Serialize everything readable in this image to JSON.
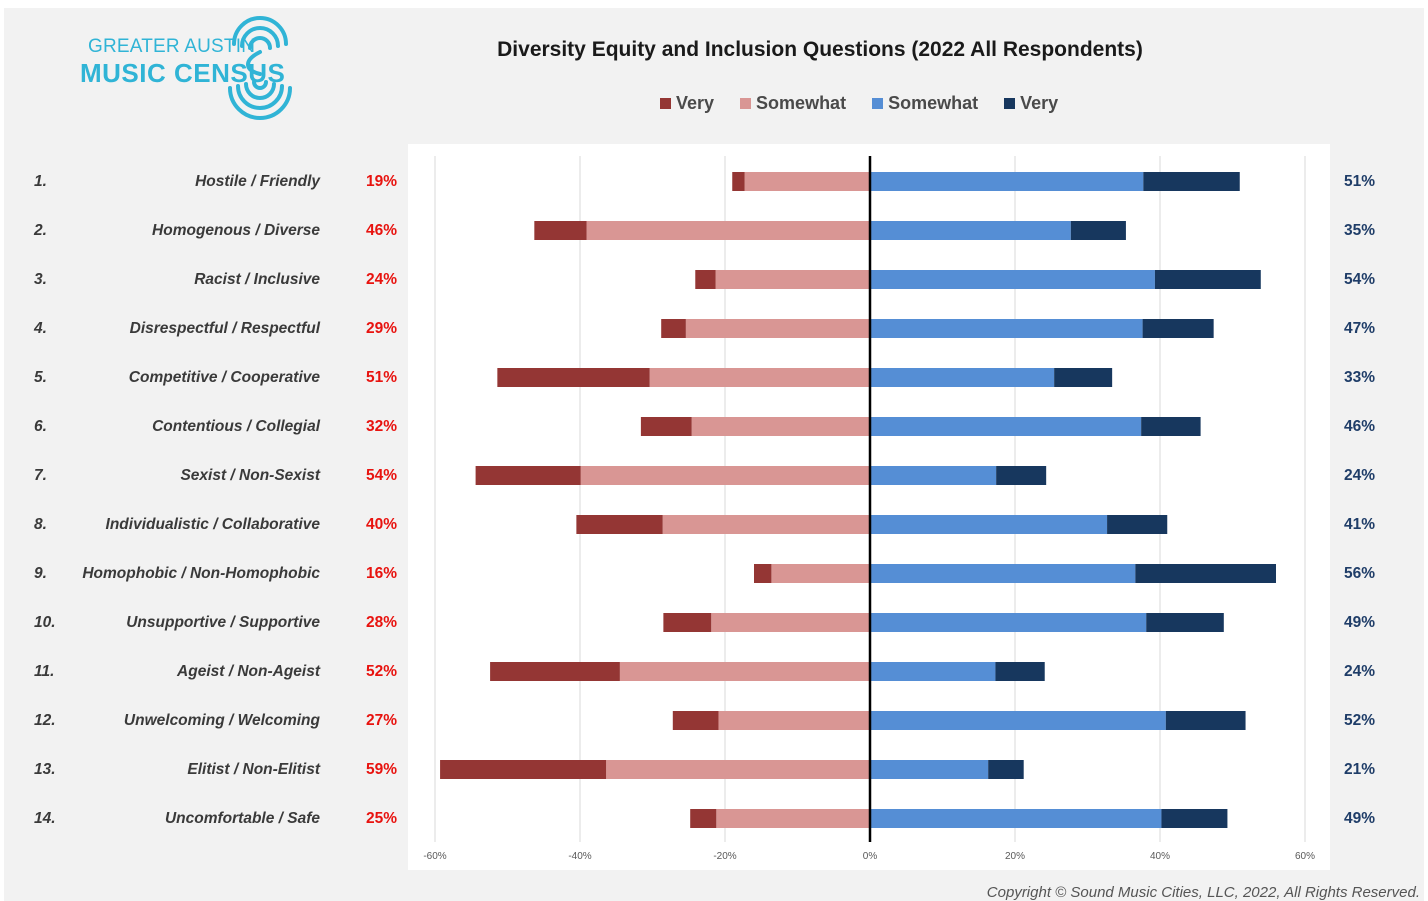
{
  "logo": {
    "line1": "GREATER AUSTIN",
    "line2": "MUSIC CENSUS",
    "icon": "radio-waves-icon"
  },
  "colors": {
    "very_negative": "#943634",
    "somewhat_negative": "#d99694",
    "somewhat_positive": "#558ed5",
    "very_positive": "#17375e",
    "negative_pct_text": "#e8130f",
    "positive_pct_text": "#1f3d68"
  },
  "chart_data": {
    "type": "bar",
    "orientation": "horizontal",
    "stacked": "diverging",
    "title": "Diversity Equity and Inclusion Questions (2022 All Respondents)",
    "legend": {
      "placement": "top",
      "entries": [
        {
          "label": "Very",
          "color": "#943634"
        },
        {
          "label": "Somewhat",
          "color": "#d99694"
        },
        {
          "label": "Somewhat",
          "color": "#558ed5"
        },
        {
          "label": "Very",
          "color": "#17375e"
        }
      ]
    },
    "xlim": [
      -60,
      60
    ],
    "xticks": [
      "-60%",
      "-40%",
      "-20%",
      "0%",
      "20%",
      "40%",
      "60%"
    ],
    "grid": "vertical",
    "rows": [
      {
        "num": "1.",
        "label": "Hostile / Friendly",
        "neg_total": "19%",
        "pos_total": "51%",
        "very_neg": 1.7,
        "somewhat_neg": 17.3,
        "somewhat_pos": 37.7,
        "very_pos": 13.3
      },
      {
        "num": "2.",
        "label": "Homogenous / Diverse",
        "neg_total": "46%",
        "pos_total": "35%",
        "very_neg": 7.2,
        "somewhat_neg": 39.1,
        "somewhat_pos": 27.7,
        "very_pos": 7.6
      },
      {
        "num": "3.",
        "label": "Racist / Inclusive",
        "neg_total": "24%",
        "pos_total": "54%",
        "very_neg": 2.8,
        "somewhat_neg": 21.3,
        "somewhat_pos": 39.3,
        "very_pos": 14.6
      },
      {
        "num": "4.",
        "label": "Disrespectful / Respectful",
        "neg_total": "29%",
        "pos_total": "47%",
        "very_neg": 3.4,
        "somewhat_neg": 25.4,
        "somewhat_pos": 37.6,
        "very_pos": 9.8
      },
      {
        "num": "5.",
        "label": "Competitive / Cooperative",
        "neg_total": "51%",
        "pos_total": "33%",
        "very_neg": 21.0,
        "somewhat_neg": 30.4,
        "somewhat_pos": 25.4,
        "very_pos": 8.0
      },
      {
        "num": "6.",
        "label": "Contentious / Collegial",
        "neg_total": "32%",
        "pos_total": "46%",
        "very_neg": 7.0,
        "somewhat_neg": 24.6,
        "somewhat_pos": 37.4,
        "very_pos": 8.2
      },
      {
        "num": "7.",
        "label": "Sexist / Non-Sexist",
        "neg_total": "54%",
        "pos_total": "24%",
        "very_neg": 14.5,
        "somewhat_neg": 39.9,
        "somewhat_pos": 17.4,
        "very_pos": 6.9
      },
      {
        "num": "8.",
        "label": "Individualistic / Collaborative",
        "neg_total": "40%",
        "pos_total": "41%",
        "very_neg": 11.9,
        "somewhat_neg": 28.6,
        "somewhat_pos": 32.7,
        "very_pos": 8.3
      },
      {
        "num": "9.",
        "label": "Homophobic / Non-Homophobic",
        "neg_total": "16%",
        "pos_total": "56%",
        "very_neg": 2.4,
        "somewhat_neg": 13.6,
        "somewhat_pos": 36.6,
        "very_pos": 19.4
      },
      {
        "num": "10.",
        "label": "Unsupportive / Supportive",
        "neg_total": "28%",
        "pos_total": "49%",
        "very_neg": 6.6,
        "somewhat_neg": 21.9,
        "somewhat_pos": 38.1,
        "very_pos": 10.7
      },
      {
        "num": "11.",
        "label": "Ageist / Non-Ageist",
        "neg_total": "52%",
        "pos_total": "24%",
        "very_neg": 17.9,
        "somewhat_neg": 34.5,
        "somewhat_pos": 17.3,
        "very_pos": 6.8
      },
      {
        "num": "12.",
        "label": "Unwelcoming / Welcoming",
        "neg_total": "27%",
        "pos_total": "52%",
        "very_neg": 6.3,
        "somewhat_neg": 20.9,
        "somewhat_pos": 40.8,
        "very_pos": 11.0
      },
      {
        "num": "13.",
        "label": "Elitist / Non-Elitist",
        "neg_total": "59%",
        "pos_total": "21%",
        "very_neg": 22.9,
        "somewhat_neg": 36.4,
        "somewhat_pos": 16.3,
        "very_pos": 4.9
      },
      {
        "num": "14.",
        "label": "Uncomfortable / Safe",
        "neg_total": "25%",
        "pos_total": "49%",
        "very_neg": 3.6,
        "somewhat_neg": 21.2,
        "somewhat_pos": 40.2,
        "very_pos": 9.1
      }
    ]
  },
  "footer": {
    "copyright": "Copyright © Sound Music Cities, LLC, 2022, All Rights Reserved."
  }
}
